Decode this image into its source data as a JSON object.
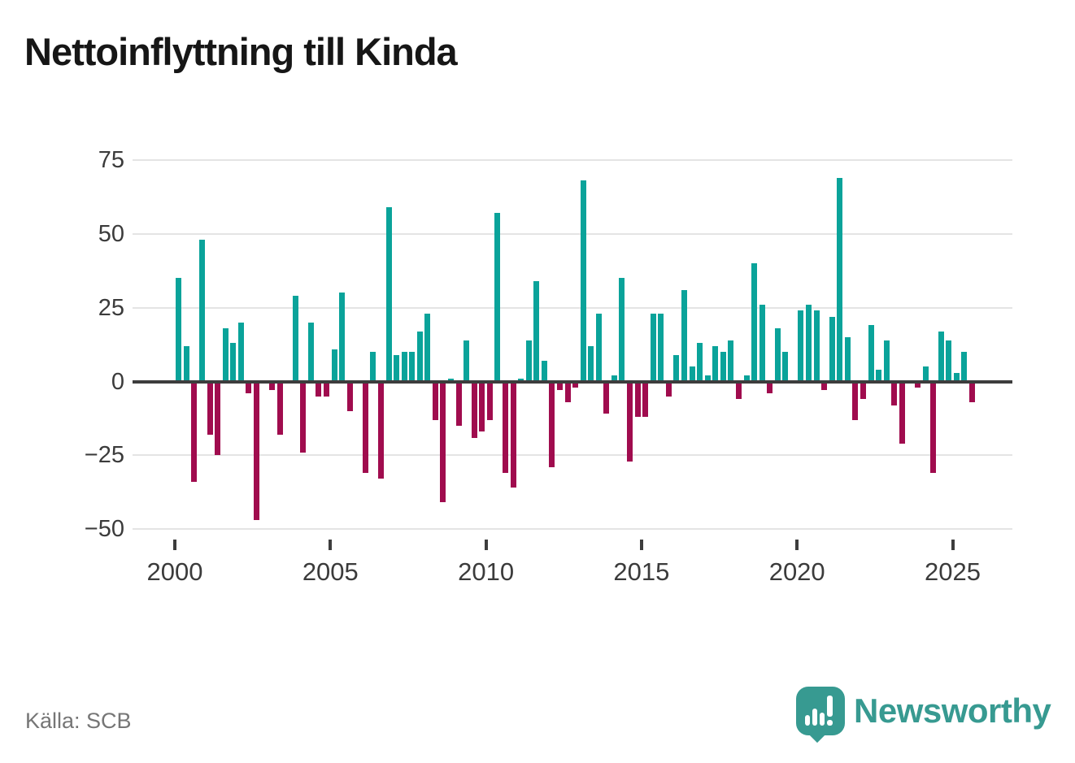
{
  "title": "Nettoinflyttning till Kinda",
  "source": "Källa: SCB",
  "brand": {
    "name": "Newsworthy",
    "color": "#379a91",
    "icon": "speech-bubble-bar-chart-icon"
  },
  "chart_data": {
    "type": "bar",
    "title": "Nettoinflyttning till Kinda",
    "frequency": "quarterly",
    "start_year": 2000,
    "start_quarter": 1,
    "values": [
      35,
      12,
      -34,
      48,
      -18,
      -25,
      18,
      13,
      20,
      -4,
      -47,
      0,
      -3,
      -18,
      0,
      29,
      -24,
      20,
      -5,
      -5,
      11,
      30,
      -10,
      0,
      -31,
      10,
      -33,
      59,
      9,
      10,
      10,
      17,
      23,
      -13,
      -41,
      1,
      -15,
      14,
      -19,
      -17,
      -13,
      57,
      -31,
      -36,
      1,
      14,
      34,
      7,
      -29,
      -3,
      -7,
      -2,
      68,
      12,
      23,
      -11,
      2,
      35,
      -27,
      -12,
      -12,
      23,
      23,
      -5,
      9,
      31,
      5,
      13,
      2,
      12,
      10,
      14,
      -6,
      2,
      40,
      26,
      -4,
      18,
      10,
      0,
      24,
      26,
      24,
      -3,
      22,
      69,
      15,
      -13,
      -6,
      19,
      4,
      14,
      -8,
      -21,
      0,
      -2,
      5,
      -31,
      17,
      14,
      3,
      10,
      -7
    ],
    "x_tick_labels": [
      "2000",
      "2005",
      "2010",
      "2015",
      "2020",
      "2025"
    ],
    "y_ticks": [
      75,
      50,
      25,
      0,
      -25,
      -50
    ],
    "y_tick_labels": [
      "75",
      "50",
      "25",
      "0",
      "−25",
      "−50"
    ],
    "ylim": [
      -52,
      80
    ],
    "grid": "horizontal",
    "legend": "none",
    "positive_color": "#0aa39a",
    "negative_color": "#a00c4e"
  },
  "layout_text": {}
}
